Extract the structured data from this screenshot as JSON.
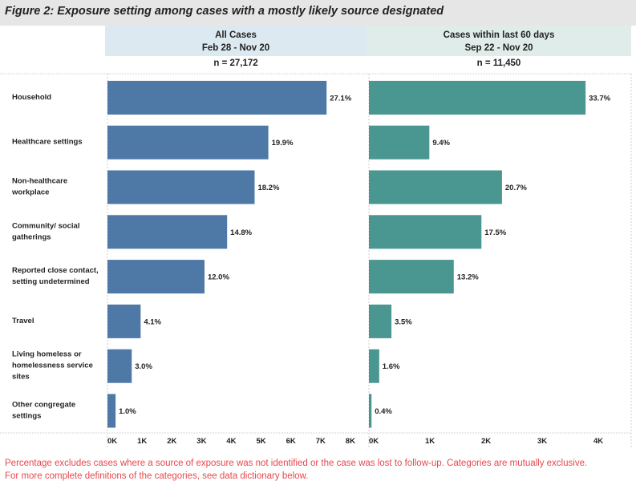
{
  "title": "Figure 2: Exposure setting among cases with a mostly likely source designated",
  "panels": [
    {
      "header_line1": "All Cases",
      "header_line2": "Feb 28 - Nov 20",
      "n_label": "n = 27,172"
    },
    {
      "header_line1": "Cases within last 60 days",
      "header_line2": "Sep 22 - Nov 20",
      "n_label": "n = 11,450"
    }
  ],
  "footnote_line1": "Percentage excludes cases where a source of exposure was not identified or the case was lost to follow-up. Categories are mutually exclusive.",
  "footnote_line2": "For more complete definitions of the categories, see data dictionary below.",
  "colors": {
    "all_cases": "#4e78a6",
    "last_60_days": "#4a9690"
  },
  "chart_data": [
    {
      "type": "bar",
      "orientation": "horizontal",
      "title": "All Cases, Feb 28 - Nov 20",
      "n": 27172,
      "categories": [
        "Household",
        "Healthcare settings",
        "Non-healthcare workplace",
        "Community/ social gatherings",
        "Reported close contact, setting undetermined",
        "Travel",
        "Living homeless or homelessness service sites",
        "Other congregate settings"
      ],
      "category_lines": [
        [
          "Household"
        ],
        [
          "Healthcare settings"
        ],
        [
          "Non-healthcare",
          "workplace"
        ],
        [
          "Community/ social",
          "gatherings"
        ],
        [
          "Reported close contact,",
          "setting undetermined"
        ],
        [
          "Travel"
        ],
        [
          "Living homeless or",
          "homelessness service",
          "sites"
        ],
        [
          "Other congregate",
          "settings"
        ]
      ],
      "percent_labels": [
        "27.1%",
        "19.9%",
        "18.2%",
        "14.8%",
        "12.0%",
        "4.1%",
        "3.0%",
        "1.0%"
      ],
      "values": [
        7364,
        5407,
        4945,
        4021,
        3261,
        1114,
        815,
        272
      ],
      "xlim": [
        0,
        8800
      ],
      "ticks": [
        0,
        1000,
        2000,
        3000,
        4000,
        5000,
        6000,
        7000,
        8000
      ],
      "tick_labels": [
        "0K",
        "1K",
        "2K",
        "3K",
        "4K",
        "5K",
        "6K",
        "7K",
        "8K"
      ],
      "grid": false
    },
    {
      "type": "bar",
      "orientation": "horizontal",
      "title": "Cases within last 60 days, Sep 22 - Nov 20",
      "n": 11450,
      "categories": [
        "Household",
        "Healthcare settings",
        "Non-healthcare workplace",
        "Community/ social gatherings",
        "Reported close contact, setting undetermined",
        "Travel",
        "Living homeless or homelessness service sites",
        "Other congregate settings"
      ],
      "percent_labels": [
        "33.7%",
        "9.4%",
        "20.7%",
        "17.5%",
        "13.2%",
        "3.5%",
        "1.6%",
        "0.4%"
      ],
      "values": [
        3859,
        1076,
        2370,
        2004,
        1511,
        401,
        183,
        46
      ],
      "xlim": [
        0,
        4700
      ],
      "ticks": [
        0,
        1000,
        2000,
        3000,
        4000
      ],
      "tick_labels": [
        "0K",
        "1K",
        "2K",
        "3K",
        "4K"
      ],
      "grid": false
    }
  ]
}
